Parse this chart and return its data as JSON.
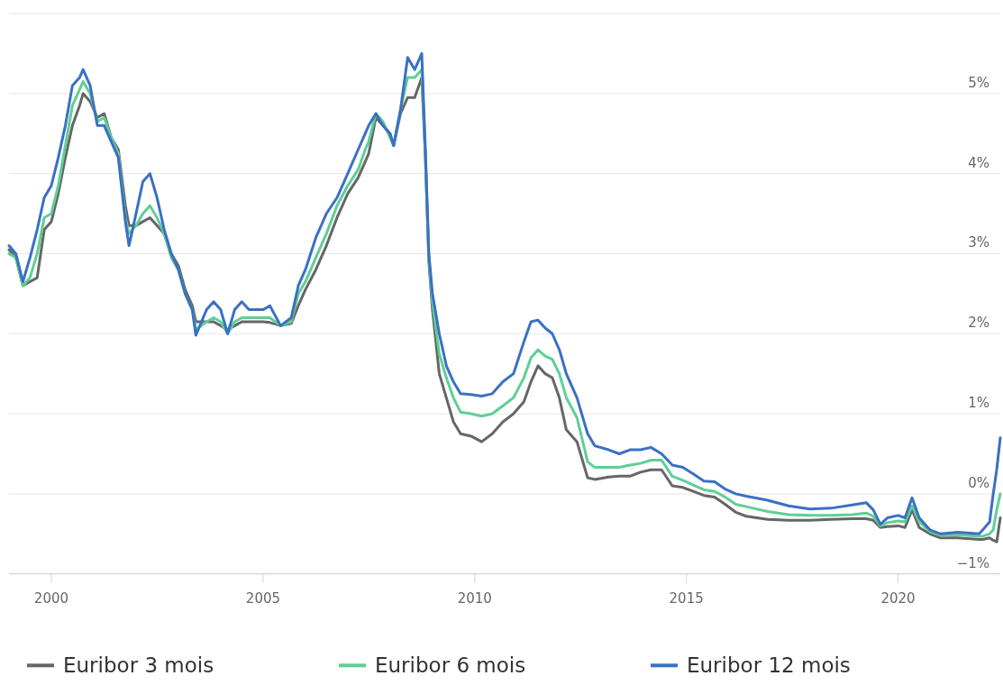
{
  "chart_data": {
    "type": "line",
    "xlim": [
      "1999-01",
      "2022-06"
    ],
    "xticks": [
      "2000",
      "2005",
      "2010",
      "2015",
      "2020"
    ],
    "ylim": [
      -1,
      6
    ],
    "yticks": [
      {
        "value": -1,
        "label": "−1%"
      },
      {
        "value": 0,
        "label": "0%"
      },
      {
        "value": 1,
        "label": "1%"
      },
      {
        "value": 2,
        "label": "2%"
      },
      {
        "value": 3,
        "label": "3%"
      },
      {
        "value": 4,
        "label": "4%"
      },
      {
        "value": 5,
        "label": "5%"
      },
      {
        "value": 6,
        "label": null
      }
    ],
    "grid": "y",
    "legend": "bottom",
    "line_style": "solid",
    "marker": "none",
    "x": [
      "1999-01",
      "1999-03",
      "1999-05",
      "1999-07",
      "1999-09",
      "1999-11",
      "2000-01",
      "2000-03",
      "2000-05",
      "2000-07",
      "2000-09",
      "2000-10",
      "2000-12",
      "2001-02",
      "2001-04",
      "2001-06",
      "2001-08",
      "2001-10",
      "2001-11",
      "2002-01",
      "2002-03",
      "2002-05",
      "2002-07",
      "2002-09",
      "2002-11",
      "2003-01",
      "2003-03",
      "2003-05",
      "2003-06",
      "2003-09",
      "2003-11",
      "2004-01",
      "2004-03",
      "2004-05",
      "2004-07",
      "2004-09",
      "2004-11",
      "2005-01",
      "2005-03",
      "2005-06",
      "2005-09",
      "2005-11",
      "2006-01",
      "2006-04",
      "2006-07",
      "2006-10",
      "2007-01",
      "2007-04",
      "2007-06",
      "2007-07",
      "2007-09",
      "2007-11",
      "2008-01",
      "2008-02",
      "2008-04",
      "2008-06",
      "2008-08",
      "2008-10",
      "2008-11",
      "2008-12",
      "2009-01",
      "2009-03",
      "2009-05",
      "2009-07",
      "2009-09",
      "2009-12",
      "2010-03",
      "2010-06",
      "2010-09",
      "2010-12",
      "2011-03",
      "2011-05",
      "2011-07",
      "2011-09",
      "2011-11",
      "2012-01",
      "2012-03",
      "2012-06",
      "2012-09",
      "2012-11",
      "2013-03",
      "2013-06",
      "2013-09",
      "2013-12",
      "2014-03",
      "2014-06",
      "2014-09",
      "2014-12",
      "2015-03",
      "2015-06",
      "2015-09",
      "2015-12",
      "2016-03",
      "2016-06",
      "2016-12",
      "2017-06",
      "2017-12",
      "2018-06",
      "2018-12",
      "2019-04",
      "2019-06",
      "2019-08",
      "2019-10",
      "2020-01",
      "2020-03",
      "2020-05",
      "2020-07",
      "2020-10",
      "2021-01",
      "2021-06",
      "2021-12",
      "2022-01",
      "2022-03",
      "2022-04",
      "2022-05",
      "2022-06"
    ],
    "series": [
      {
        "name": "Euribor 3 mois",
        "color": "#666666",
        "values": [
          3.05,
          2.95,
          2.6,
          2.65,
          2.7,
          3.3,
          3.4,
          3.75,
          4.2,
          4.6,
          4.85,
          5.0,
          4.9,
          4.7,
          4.75,
          4.45,
          4.3,
          3.6,
          3.35,
          3.35,
          3.4,
          3.45,
          3.35,
          3.25,
          3.0,
          2.85,
          2.55,
          2.35,
          2.15,
          2.15,
          2.15,
          2.1,
          2.05,
          2.1,
          2.15,
          2.15,
          2.15,
          2.15,
          2.14,
          2.1,
          2.13,
          2.35,
          2.55,
          2.8,
          3.1,
          3.45,
          3.75,
          3.95,
          4.15,
          4.25,
          4.7,
          4.6,
          4.5,
          4.35,
          4.75,
          4.95,
          4.95,
          5.2,
          4.2,
          2.9,
          2.3,
          1.5,
          1.2,
          0.9,
          0.75,
          0.72,
          0.65,
          0.75,
          0.9,
          1.0,
          1.15,
          1.4,
          1.6,
          1.5,
          1.45,
          1.2,
          0.8,
          0.65,
          0.2,
          0.18,
          0.21,
          0.22,
          0.22,
          0.27,
          0.3,
          0.3,
          0.1,
          0.08,
          0.03,
          -0.02,
          -0.04,
          -0.13,
          -0.23,
          -0.28,
          -0.32,
          -0.33,
          -0.33,
          -0.32,
          -0.31,
          -0.31,
          -0.33,
          -0.42,
          -0.41,
          -0.4,
          -0.42,
          -0.2,
          -0.42,
          -0.5,
          -0.55,
          -0.55,
          -0.57,
          -0.57,
          -0.55,
          -0.58,
          -0.6,
          -0.3
        ]
      },
      {
        "name": "Euribor 6 mois",
        "color": "#5ecf96",
        "values": [
          3.0,
          2.95,
          2.6,
          2.7,
          3.0,
          3.45,
          3.5,
          3.85,
          4.35,
          4.85,
          5.05,
          5.15,
          5.0,
          4.65,
          4.7,
          4.45,
          4.25,
          3.45,
          3.25,
          3.35,
          3.5,
          3.6,
          3.45,
          3.25,
          2.95,
          2.8,
          2.5,
          2.3,
          2.05,
          2.15,
          2.2,
          2.15,
          2.0,
          2.15,
          2.2,
          2.2,
          2.2,
          2.2,
          2.2,
          2.1,
          2.15,
          2.5,
          2.65,
          2.95,
          3.25,
          3.6,
          3.85,
          4.05,
          4.3,
          4.4,
          4.75,
          4.65,
          4.45,
          4.35,
          4.8,
          5.2,
          5.2,
          5.3,
          4.25,
          2.95,
          2.4,
          1.75,
          1.45,
          1.2,
          1.02,
          1.0,
          0.97,
          1.0,
          1.1,
          1.2,
          1.45,
          1.7,
          1.8,
          1.72,
          1.68,
          1.5,
          1.2,
          0.95,
          0.4,
          0.33,
          0.33,
          0.33,
          0.36,
          0.38,
          0.42,
          0.42,
          0.22,
          0.17,
          0.11,
          0.05,
          0.03,
          -0.04,
          -0.13,
          -0.16,
          -0.22,
          -0.26,
          -0.27,
          -0.27,
          -0.26,
          -0.24,
          -0.28,
          -0.4,
          -0.36,
          -0.34,
          -0.35,
          -0.15,
          -0.35,
          -0.47,
          -0.52,
          -0.51,
          -0.53,
          -0.53,
          -0.5,
          -0.45,
          -0.2,
          0.0
        ]
      },
      {
        "name": "Euribor 12 mois",
        "color": "#3a70c4",
        "values": [
          3.1,
          3.0,
          2.65,
          2.95,
          3.3,
          3.7,
          3.85,
          4.2,
          4.6,
          5.1,
          5.2,
          5.3,
          5.1,
          4.6,
          4.6,
          4.4,
          4.2,
          3.4,
          3.1,
          3.5,
          3.9,
          4.0,
          3.7,
          3.3,
          3.0,
          2.8,
          2.5,
          2.3,
          1.98,
          2.3,
          2.4,
          2.3,
          2.0,
          2.3,
          2.4,
          2.3,
          2.3,
          2.3,
          2.35,
          2.1,
          2.2,
          2.6,
          2.8,
          3.2,
          3.5,
          3.7,
          4.0,
          4.3,
          4.5,
          4.6,
          4.75,
          4.6,
          4.5,
          4.35,
          4.8,
          5.45,
          5.3,
          5.5,
          4.3,
          3.0,
          2.5,
          2.0,
          1.6,
          1.4,
          1.25,
          1.24,
          1.22,
          1.25,
          1.4,
          1.5,
          1.9,
          2.15,
          2.17,
          2.07,
          2.0,
          1.8,
          1.5,
          1.2,
          0.75,
          0.6,
          0.55,
          0.5,
          0.55,
          0.55,
          0.58,
          0.5,
          0.36,
          0.33,
          0.25,
          0.16,
          0.15,
          0.06,
          0.0,
          -0.03,
          -0.08,
          -0.15,
          -0.19,
          -0.18,
          -0.14,
          -0.11,
          -0.2,
          -0.38,
          -0.3,
          -0.27,
          -0.3,
          -0.05,
          -0.3,
          -0.45,
          -0.5,
          -0.48,
          -0.5,
          -0.45,
          -0.35,
          0.0,
          0.3,
          0.7
        ]
      }
    ]
  }
}
